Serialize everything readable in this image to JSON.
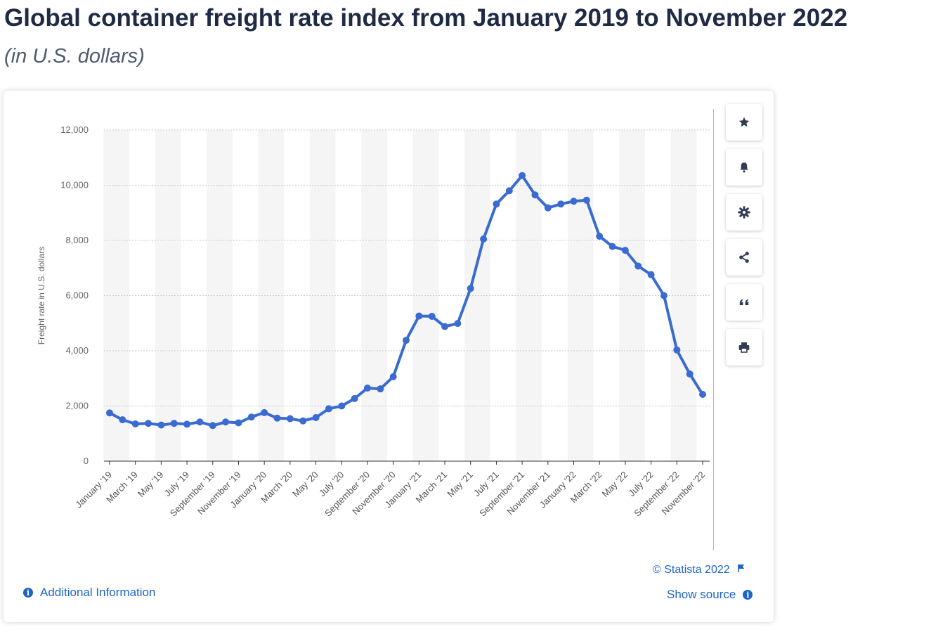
{
  "header": {
    "title": "Global container freight rate index from January 2019 to November 2022",
    "subtitle": "(in U.S. dollars)"
  },
  "colors": {
    "line": "#3a6bd0",
    "title": "#1f2a44",
    "link": "#1c64c8",
    "band": "#f5f5f5"
  },
  "toolbar": [
    {
      "name": "favorite-button",
      "icon": "star-icon"
    },
    {
      "name": "notification-button",
      "icon": "bell-icon"
    },
    {
      "name": "settings-button",
      "icon": "gear-icon"
    },
    {
      "name": "share-button",
      "icon": "share-icon"
    },
    {
      "name": "cite-button",
      "icon": "quote-icon"
    },
    {
      "name": "print-button",
      "icon": "print-icon"
    }
  ],
  "footer": {
    "additional_info": "Additional Information",
    "copyright": "© Statista 2022",
    "show_source": "Show source"
  },
  "chart_data": {
    "type": "line",
    "title": "",
    "ylabel": "Freight rate in U.S. dollars",
    "xlabel": "",
    "ylim": [
      0,
      12000
    ],
    "yticks": [
      "0",
      "2,000",
      "4,000",
      "6,000",
      "8,000",
      "10,000",
      "12,000"
    ],
    "grid": true,
    "legend": "none",
    "categories": [
      "January '19",
      "February '19",
      "March '19",
      "April '19",
      "May '19",
      "June '19",
      "July '19",
      "August '19",
      "September '19",
      "October '19",
      "November '19",
      "December '19",
      "January '20",
      "February '20",
      "March '20",
      "April '20",
      "May '20",
      "June '20",
      "July '20",
      "August '20",
      "September '20",
      "October '20",
      "November '20",
      "December '20",
      "January '21",
      "February '21",
      "March '21",
      "April '21",
      "May '21",
      "June '21",
      "July '21",
      "August '21",
      "September '21",
      "October '21",
      "November '21",
      "December '21",
      "January '22",
      "February '22",
      "March '22",
      "April '22",
      "May '22",
      "June '22",
      "July '22",
      "August '22",
      "September '22",
      "October '22",
      "November '22"
    ],
    "tick_labels": [
      "January '19",
      "March '19",
      "May '19",
      "July '19",
      "September '19",
      "November '19",
      "January '20",
      "March '20",
      "May '20",
      "July '20",
      "September '20",
      "November '20",
      "January '21",
      "March '21",
      "May '21",
      "July '21",
      "September '21",
      "November '21",
      "January '22",
      "March '22",
      "May '22",
      "July '22",
      "September '22",
      "November '22"
    ],
    "values": [
      1750,
      1500,
      1350,
      1370,
      1310,
      1370,
      1340,
      1420,
      1290,
      1420,
      1390,
      1600,
      1760,
      1560,
      1540,
      1460,
      1580,
      1900,
      2000,
      2270,
      2650,
      2620,
      3060,
      4380,
      5260,
      5250,
      4880,
      4990,
      6260,
      8050,
      9320,
      9800,
      10350,
      9650,
      9180,
      9320,
      9420,
      9460,
      8150,
      7780,
      7640,
      7070,
      6760,
      6000,
      4030,
      3160,
      2420
    ]
  }
}
